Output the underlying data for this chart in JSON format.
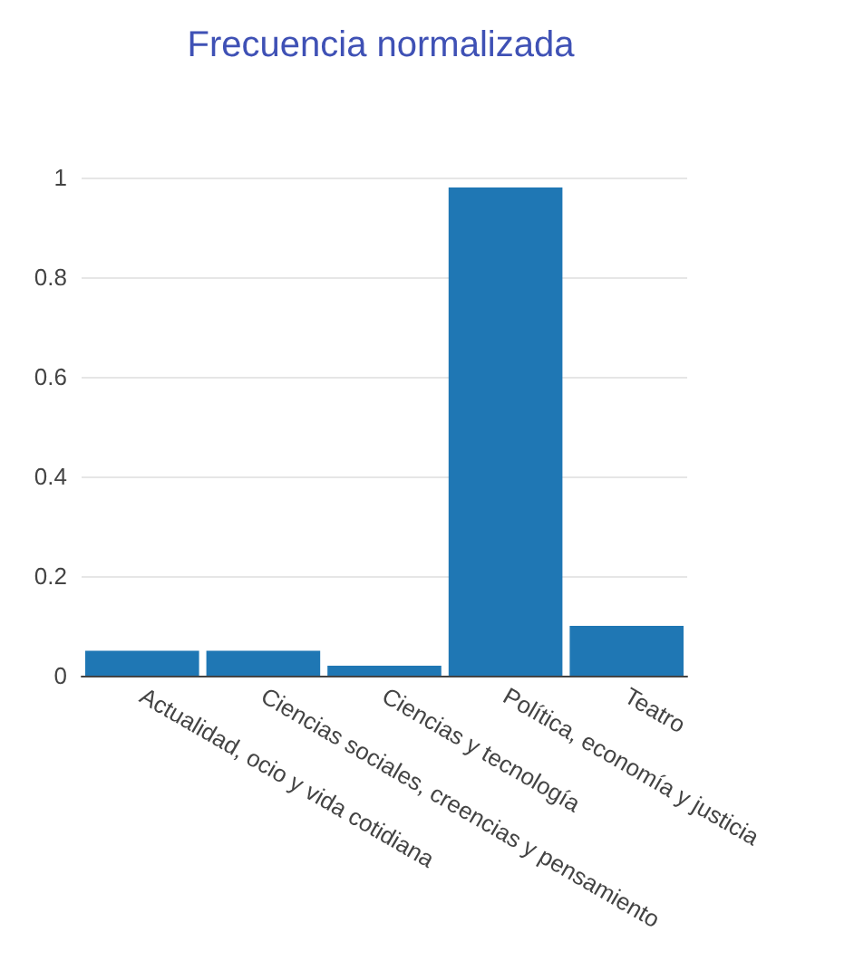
{
  "chart_data": {
    "type": "bar",
    "title": "Frecuencia normalizada",
    "categories": [
      "Actualidad, ocio y vida cotidiana",
      "Ciencias sociales, creencias y pensamiento",
      "Ciencias y tecnología",
      "Política, economía y justicia",
      "Teatro"
    ],
    "values": [
      0.05,
      0.05,
      0.02,
      0.98,
      0.1
    ],
    "color": "#1f77b4",
    "ylim": [
      0,
      1
    ],
    "yticks": [
      0,
      0.2,
      0.4,
      0.6,
      0.8,
      1
    ],
    "grid": "y"
  }
}
